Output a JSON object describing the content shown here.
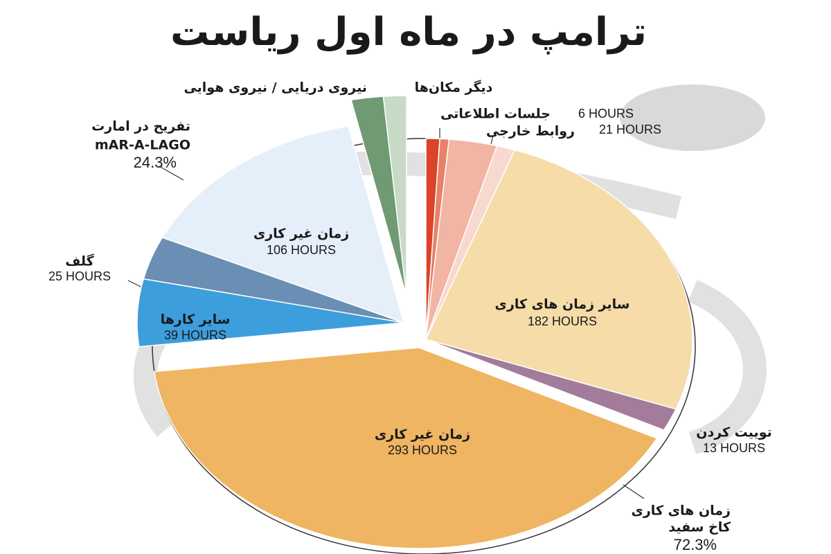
{
  "chart_data": {
    "type": "pie",
    "title": "ترامپ در ماه اول ریاست",
    "categories": [
      "جلسات اطلاعاتی",
      null,
      "روابط خارجی",
      null,
      "سایر زمان های کاری",
      "توییت کردن",
      "زمان غیر کاری",
      "سایر کارها",
      "گلف",
      "زمان غیر کاری",
      "نیروی دریایی / نیروی هوایی",
      "دیگر مکان‌ها"
    ],
    "values": [
      6,
      4,
      21,
      8,
      182,
      13,
      293,
      39,
      25,
      106,
      14,
      10
    ],
    "value_labels": [
      "6 HOURS",
      null,
      "21 HOURS",
      null,
      "182 HOURS",
      "13 HOURS",
      "293 HOURS",
      "39 HOURS",
      "25 HOURS",
      "106 HOURS",
      null,
      null
    ],
    "colors": [
      "#d9442b",
      "#e8806a",
      "#f2b4a3",
      "#f9d8d0",
      "#f5dca8",
      "#a27c9a",
      "#efb562",
      "#3d9edc",
      "#6b8fb4",
      "#e5effa",
      "#6f9a72",
      "#c6dac5"
    ],
    "annotations": [
      {
        "lines": [
          "زمان های کاری",
          "کاخ سفید"
        ],
        "share": {
          "value": 72.3,
          "label": "72.3%"
        }
      },
      {
        "lines": [
          "تفریح در امارت",
          "mAR-A-LAGO"
        ],
        "share": {
          "value": 24.3,
          "label": "24.3%"
        }
      }
    ]
  }
}
